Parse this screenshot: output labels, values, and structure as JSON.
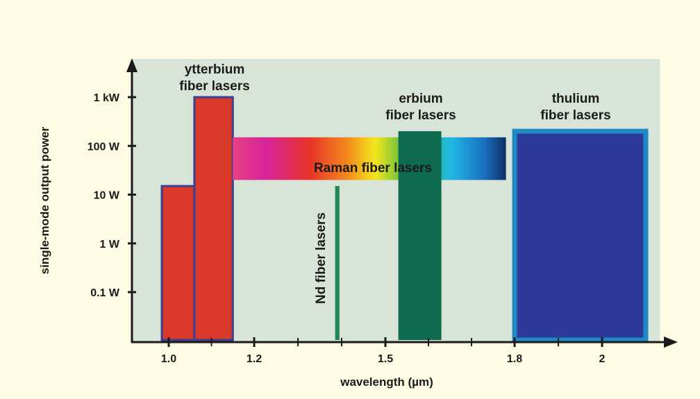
{
  "chart_data": {
    "type": "bar",
    "xlabel": "wavelength (µm)",
    "ylabel": "single-mode output power",
    "x_ticks": [
      {
        "value": 1.0,
        "label": "1.0"
      },
      {
        "value": 1.2,
        "label": "1.2"
      },
      {
        "value": 1.5,
        "label": "1.5"
      },
      {
        "value": 1.8,
        "label": "1.8"
      },
      {
        "value": 2.0,
        "label": "2"
      }
    ],
    "y_ticks": [
      {
        "value": 0.1,
        "label": "0.1 W"
      },
      {
        "value": 1,
        "label": "1 W"
      },
      {
        "value": 10,
        "label": "10 W"
      },
      {
        "value": 100,
        "label": "100 W"
      },
      {
        "value": 1000,
        "label": "1 kW"
      }
    ],
    "y_scale": "log",
    "series": [
      {
        "name": "ytterbium fiber lasers",
        "label_lines": [
          "ytterbium",
          "fiber lasers"
        ],
        "color": "#d8392b",
        "bars": [
          {
            "x0": 0.98,
            "x1": 1.06,
            "y": 15
          },
          {
            "x0": 1.06,
            "x1": 1.15,
            "y": 1000
          }
        ]
      },
      {
        "name": "Raman fiber lasers",
        "label_lines": [
          "Raman fiber lasers"
        ],
        "color": "gradient",
        "band": {
          "x0": 1.15,
          "x1": 1.78,
          "y0": 20,
          "y1": 150
        }
      },
      {
        "name": "Nd fiber lasers",
        "label_lines": [
          "Nd fiber lasers"
        ],
        "color": "#1f8a55",
        "bars": [
          {
            "x0": 1.385,
            "x1": 1.395,
            "y": 15
          }
        ]
      },
      {
        "name": "erbium fiber lasers",
        "label_lines": [
          "erbium",
          "fiber lasers"
        ],
        "color": "#0f6b50",
        "bars": [
          {
            "x0": 1.53,
            "x1": 1.63,
            "y": 200
          }
        ]
      },
      {
        "name": "thulium fiber lasers",
        "label_lines": [
          "thulium",
          "fiber lasers"
        ],
        "color": "#2d3a9a",
        "bars": [
          {
            "x0": 1.8,
            "x1": 2.1,
            "y": 200
          }
        ]
      }
    ]
  }
}
